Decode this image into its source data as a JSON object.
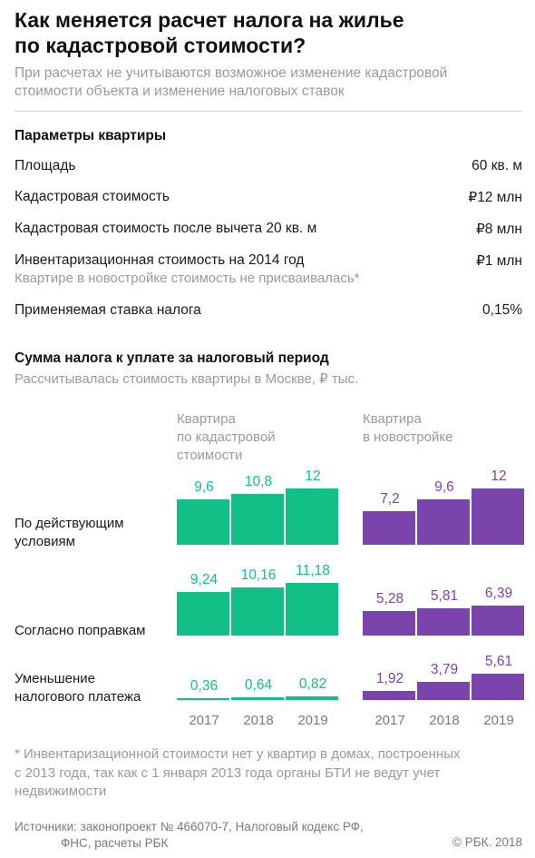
{
  "title_lines": [
    "Как меняется расчет налога на жилье",
    "по кадастровой стоимости?"
  ],
  "subtitle_lines": [
    "При расчетах не учитываются возможное изменение кадастровой",
    "стоимости объекта и изменение налоговых ставок"
  ],
  "params": {
    "heading": "Параметры квартиры",
    "rows": [
      {
        "label": "Площадь",
        "value": "60 кв. м"
      },
      {
        "label": "Кадастровая стоимость",
        "value": "₽12 млн"
      },
      {
        "label": "Кадастровая стоимость после вычета 20 кв. м",
        "value": "₽8 млн"
      },
      {
        "label": "Инвентаризационная стоимость на 2014 год",
        "value": "₽1 млн",
        "note": "Квартире в новостройке стоимость не присваивалась*"
      },
      {
        "label": "Применяемая ставка налога",
        "value": "0,15%"
      }
    ]
  },
  "tax": {
    "heading": "Сумма налога к уплате за налоговый период",
    "note": "Рассчитывалась стоимость квартиры в Москве, ₽ тыс."
  },
  "colors": {
    "cadastral": "#12bf87",
    "newbuild": "#7b44ad"
  },
  "chart_data": {
    "type": "bar",
    "unit": "₽ тыс.",
    "categories": [
      "2017",
      "2018",
      "2019"
    ],
    "groups": [
      {
        "header_lines": [
          "Квартира",
          "по кадастровой",
          "стоимости"
        ],
        "color": "#12bf87"
      },
      {
        "header_lines": [
          "Квартира",
          "в новостройке"
        ],
        "color": "#7b44ad"
      }
    ],
    "rows": [
      {
        "label_lines": [
          "По действующим",
          "условиям"
        ],
        "series": [
          {
            "values": [
              9.6,
              10.8,
              12
            ],
            "labels": [
              "9,6",
              "10,8",
              "12"
            ]
          },
          {
            "values": [
              7.2,
              9.6,
              12
            ],
            "labels": [
              "7,2",
              "9,6",
              "12"
            ]
          }
        ]
      },
      {
        "label_lines": [
          "Согласно поправкам"
        ],
        "series": [
          {
            "values": [
              9.24,
              10.16,
              11.18
            ],
            "labels": [
              "9,24",
              "10,16",
              "11,18"
            ]
          },
          {
            "values": [
              5.28,
              5.81,
              6.39
            ],
            "labels": [
              "5,28",
              "5,81",
              "6,39"
            ]
          }
        ]
      },
      {
        "label_lines": [
          "Уменьшение",
          "налогового платежа"
        ],
        "series": [
          {
            "values": [
              0.36,
              0.64,
              0.82
            ],
            "labels": [
              "0,36",
              "0,64",
              "0,82"
            ]
          },
          {
            "values": [
              1.92,
              3.79,
              5.61
            ],
            "labels": [
              "1,92",
              "3,79",
              "5,61"
            ]
          }
        ]
      }
    ]
  },
  "footnote_lines": [
    "* Инвентаризационной стоимости нет у квартир в домах, построенных",
    "с 2013 года, так как с 1 января 2013 года органы БТИ не ведут учет",
    "недвижимости"
  ],
  "sources_lines": [
    "Источники: законопроект № 466070-7, Налоговый кодекс РФ,",
    "ФНС, расчеты РБК"
  ],
  "copyright": "© РБК. 2018"
}
